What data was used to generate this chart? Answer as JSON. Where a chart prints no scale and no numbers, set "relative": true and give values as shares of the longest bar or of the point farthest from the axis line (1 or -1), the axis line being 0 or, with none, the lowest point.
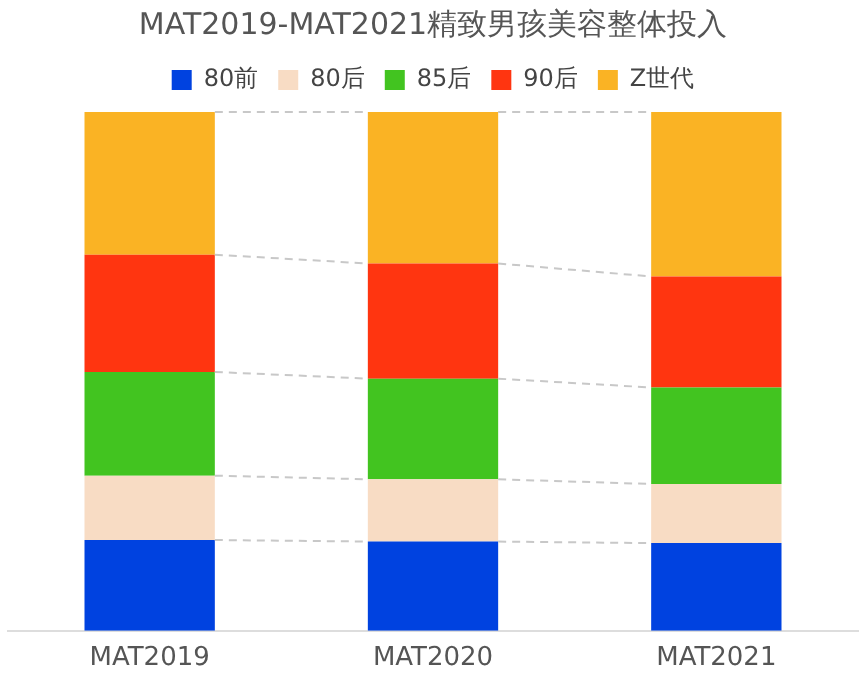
{
  "chart_data": {
    "type": "bar",
    "title": "MAT2019-MAT2021精致男孩美容整体投入",
    "categories": [
      "MAT2019",
      "MAT2020",
      "MAT2021"
    ],
    "stacked": true,
    "relative": true,
    "legend": "top",
    "grid": false,
    "series": [
      {
        "name": "80前",
        "color": "#0042e0",
        "values": [
          0.175,
          0.172,
          0.169
        ]
      },
      {
        "name": "80后",
        "color": "#f8dcc4",
        "values": [
          0.124,
          0.12,
          0.114
        ]
      },
      {
        "name": "85后",
        "color": "#42c420",
        "values": [
          0.2,
          0.194,
          0.186
        ]
      },
      {
        "name": "90后",
        "color": "#ff3510",
        "values": [
          0.226,
          0.222,
          0.214
        ]
      },
      {
        "name": "Z世代",
        "color": "#fab324",
        "values": [
          0.275,
          0.292,
          0.317
        ]
      }
    ]
  }
}
